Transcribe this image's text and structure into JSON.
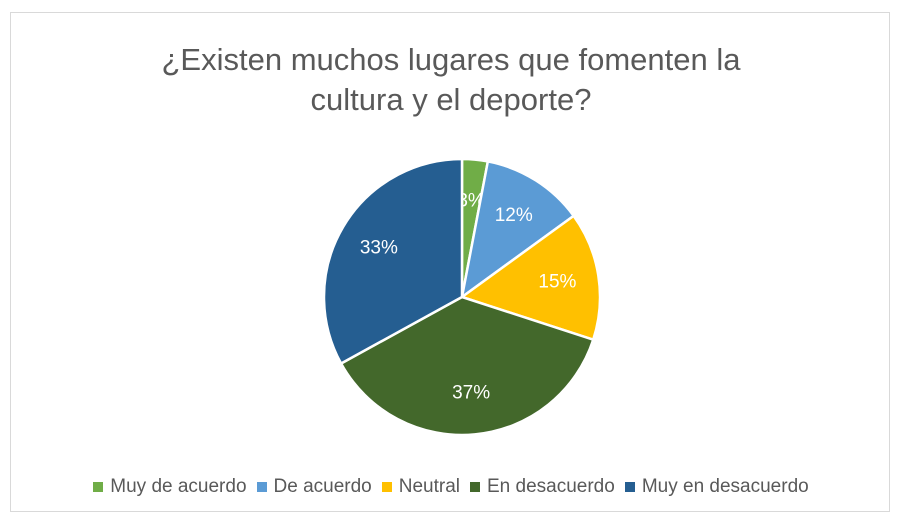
{
  "chart_data": {
    "type": "pie",
    "title_lines": [
      "¿Existen muchos lugares que fomenten la",
      "cultura y el deporte?"
    ],
    "categories": [
      "Muy de acuerdo",
      "De acuerdo",
      "Neutral",
      "En desacuerdo",
      "Muy en desacuerdo"
    ],
    "values": [
      3,
      12,
      15,
      37,
      33
    ],
    "labels": [
      "3%",
      "12%",
      "15%",
      "37%",
      "33%"
    ],
    "colors": [
      "#70ad47",
      "#5b9bd5",
      "#ffc000",
      "#43682b",
      "#255e91"
    ],
    "legend_position": "bottom"
  }
}
